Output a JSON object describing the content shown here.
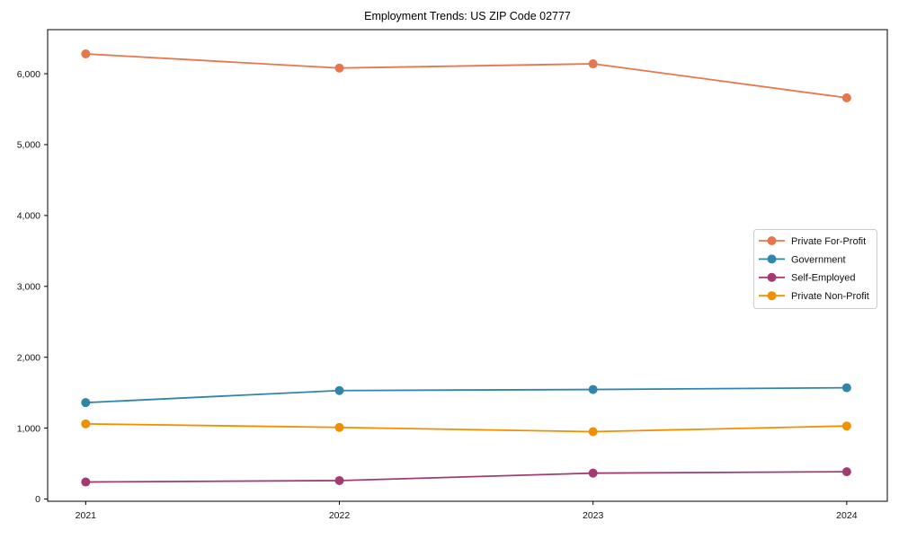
{
  "figure": {
    "title": "Employment Trends: US ZIP Code 02777"
  },
  "chart_data": {
    "type": "line",
    "title": "Employment Trends: US ZIP Code 02777",
    "xlabel": "",
    "ylabel": "",
    "x": [
      2021,
      2022,
      2023,
      2024
    ],
    "x_tick_labels": [
      "2021",
      "2022",
      "2023",
      "2024"
    ],
    "series": [
      {
        "name": "Private For-Profit",
        "color": "#e8764b",
        "values": [
          6280,
          6080,
          6140,
          5660
        ]
      },
      {
        "name": "Government",
        "color": "#2e86ab",
        "values": [
          1360,
          1530,
          1545,
          1570
        ]
      },
      {
        "name": "Self-Employed",
        "color": "#a23b72",
        "values": [
          240,
          260,
          365,
          385
        ]
      },
      {
        "name": "Private Non-Profit",
        "color": "#f18f01",
        "values": [
          1060,
          1010,
          950,
          1030
        ]
      }
    ],
    "yticks": [
      0,
      1000,
      2000,
      3000,
      4000,
      5000,
      6000
    ],
    "y_tick_labels": [
      "0",
      "1,000",
      "2,000",
      "3,000",
      "4,000",
      "5,000",
      "6,000"
    ],
    "ylim": [
      -32,
      6622
    ],
    "xlim": [
      2020.85,
      2024.16
    ],
    "grid": false,
    "legend_position": "center right",
    "marker": "circle",
    "spine_color": "#000000",
    "legend_border_color": "#cccccc"
  }
}
